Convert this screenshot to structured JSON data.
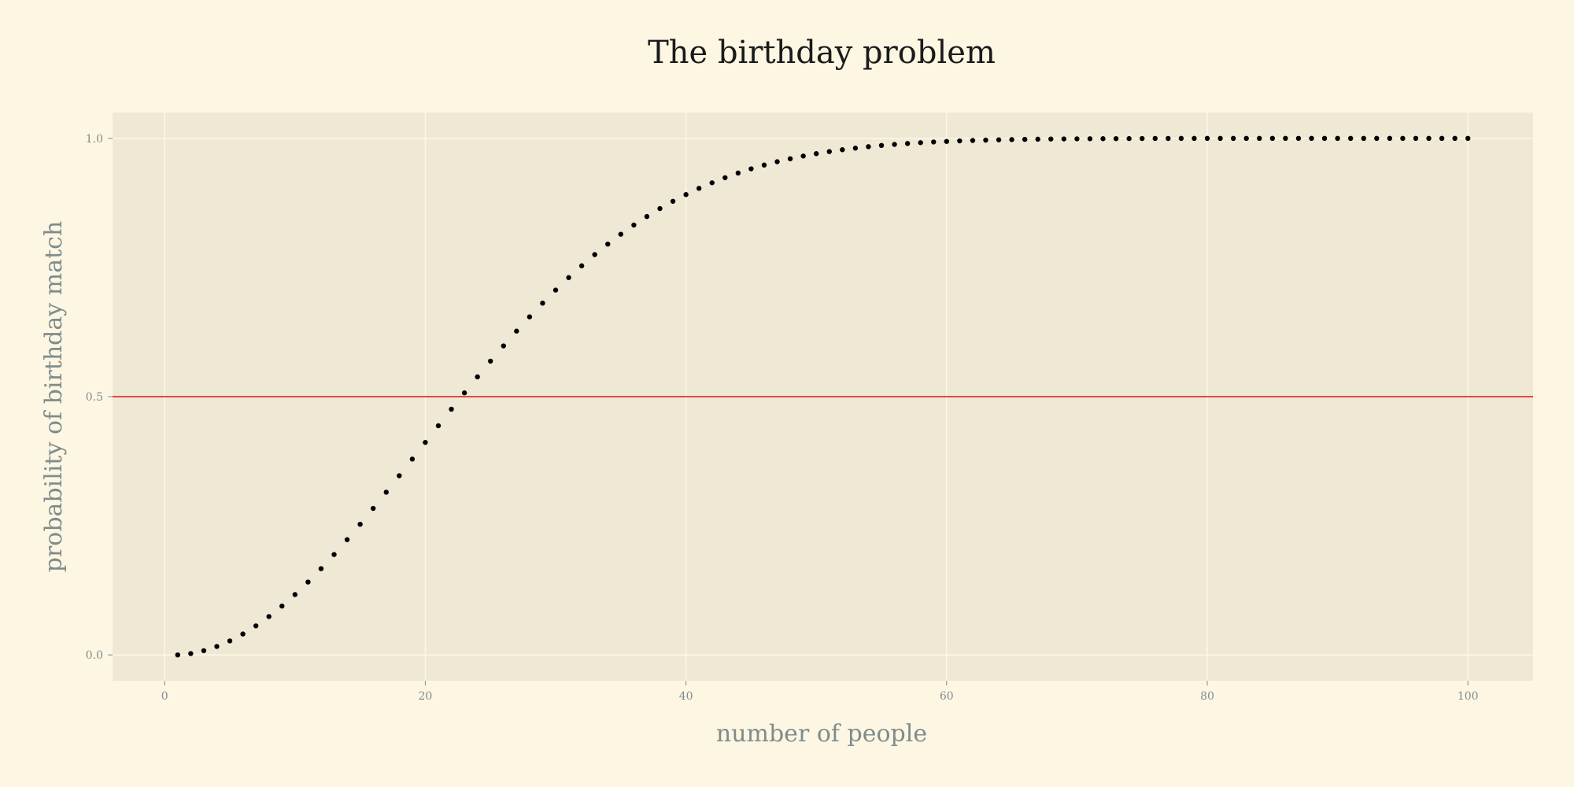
{
  "chart_data": {
    "type": "scatter",
    "title": "The birthday problem",
    "xlabel": "number of people",
    "ylabel": "probability of birthday match",
    "xlim": [
      -4,
      105
    ],
    "ylim": [
      -0.05,
      1.05
    ],
    "xticks": [
      0,
      20,
      40,
      60,
      80,
      100
    ],
    "xtick_labels": [
      "0",
      "20",
      "40",
      "60",
      "80",
      "100"
    ],
    "yticks": [
      0.0,
      0.5,
      1.0
    ],
    "ytick_labels": [
      "0.0",
      "0.5",
      "1.0"
    ],
    "grid": true,
    "reference_line": {
      "y": 0.5,
      "color": "#dc322f"
    },
    "colors": {
      "background": "#fdf6e3",
      "plot_area": "#eee8d5",
      "grid": "#fdf6e3",
      "points": "#000000",
      "title": "#1a1a1a",
      "axis_text": "#7f8c8d"
    },
    "x": [
      1,
      2,
      3,
      4,
      5,
      6,
      7,
      8,
      9,
      10,
      11,
      12,
      13,
      14,
      15,
      16,
      17,
      18,
      19,
      20,
      21,
      22,
      23,
      24,
      25,
      26,
      27,
      28,
      29,
      30,
      31,
      32,
      33,
      34,
      35,
      36,
      37,
      38,
      39,
      40,
      41,
      42,
      43,
      44,
      45,
      46,
      47,
      48,
      49,
      50,
      51,
      52,
      53,
      54,
      55,
      56,
      57,
      58,
      59,
      60,
      61,
      62,
      63,
      64,
      65,
      66,
      67,
      68,
      69,
      70,
      71,
      72,
      73,
      74,
      75,
      76,
      77,
      78,
      79,
      80,
      81,
      82,
      83,
      84,
      85,
      86,
      87,
      88,
      89,
      90,
      91,
      92,
      93,
      94,
      95,
      96,
      97,
      98,
      99,
      100
    ],
    "y": [
      0.0,
      0.0027,
      0.0082,
      0.0164,
      0.0271,
      0.0405,
      0.0562,
      0.0743,
      0.0946,
      0.1169,
      0.1411,
      0.167,
      0.1944,
      0.2231,
      0.2529,
      0.2836,
      0.315,
      0.3469,
      0.3791,
      0.4114,
      0.4437,
      0.4757,
      0.5073,
      0.5383,
      0.5687,
      0.5982,
      0.6269,
      0.6545,
      0.681,
      0.7063,
      0.7305,
      0.7533,
      0.775,
      0.7953,
      0.8144,
      0.8322,
      0.8487,
      0.8641,
      0.8782,
      0.8912,
      0.9032,
      0.914,
      0.9239,
      0.9329,
      0.941,
      0.9483,
      0.9548,
      0.9606,
      0.9658,
      0.9704,
      0.9744,
      0.978,
      0.9811,
      0.9839,
      0.9863,
      0.9883,
      0.9901,
      0.9917,
      0.993,
      0.9941,
      0.9951,
      0.9959,
      0.9966,
      0.9972,
      0.9977,
      0.9981,
      0.9984,
      0.9987,
      0.9989,
      0.9991,
      0.9993,
      0.9994,
      0.9995,
      0.9996,
      0.9997,
      0.9998,
      0.9998,
      0.9999,
      0.9999,
      0.9999,
      0.9999,
      0.9999,
      1.0,
      1.0,
      1.0,
      1.0,
      1.0,
      1.0,
      1.0,
      1.0,
      1.0,
      1.0,
      1.0,
      1.0,
      1.0,
      1.0,
      1.0,
      1.0,
      1.0,
      1.0
    ]
  }
}
